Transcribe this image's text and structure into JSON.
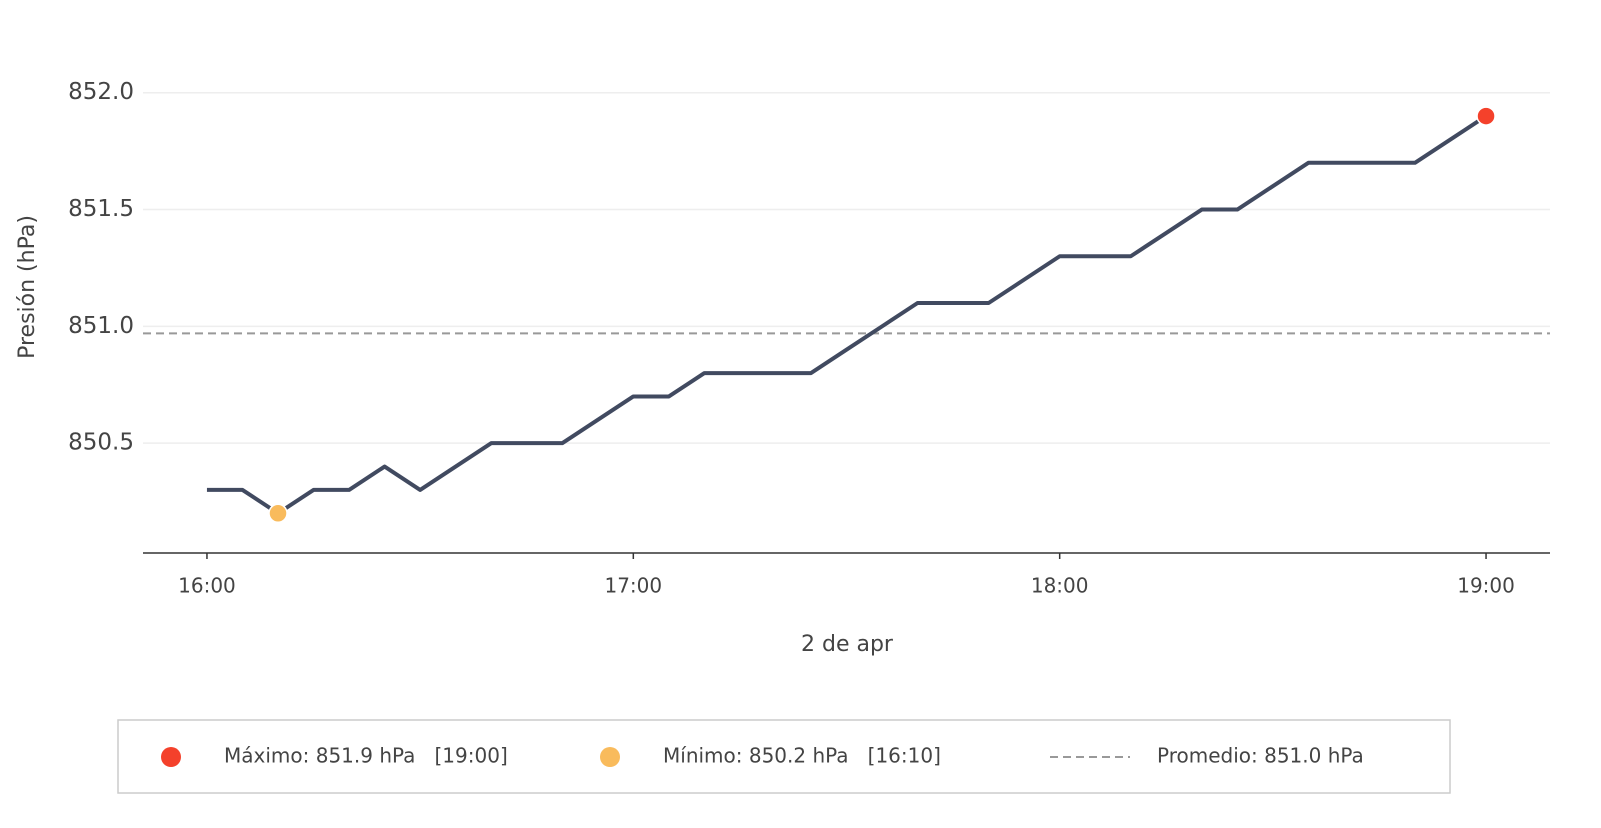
{
  "chart_data": {
    "type": "line",
    "y_label": "Presión (hPa)",
    "x_label": "2 de apr",
    "x": [
      "16:00",
      "16:05",
      "16:10",
      "16:15",
      "16:20",
      "16:25",
      "16:30",
      "16:35",
      "16:40",
      "16:45",
      "16:50",
      "16:55",
      "17:00",
      "17:05",
      "17:10",
      "17:15",
      "17:20",
      "17:25",
      "17:30",
      "17:35",
      "17:40",
      "17:45",
      "17:50",
      "17:55",
      "18:00",
      "18:05",
      "18:10",
      "18:15",
      "18:20",
      "18:25",
      "18:30",
      "18:35",
      "18:40",
      "18:45",
      "18:50",
      "18:55",
      "19:00"
    ],
    "values": [
      850.3,
      850.3,
      850.2,
      850.3,
      850.3,
      850.4,
      850.3,
      850.4,
      850.5,
      850.5,
      850.5,
      850.6,
      850.7,
      850.7,
      850.8,
      850.8,
      850.8,
      850.8,
      850.9,
      851.0,
      851.1,
      851.1,
      851.1,
      851.2,
      851.3,
      851.3,
      851.3,
      851.4,
      851.5,
      851.5,
      851.6,
      851.7,
      851.7,
      851.7,
      851.7,
      851.8,
      851.9
    ],
    "color": "#414a60",
    "xlim": [
      "15:51",
      "19:09"
    ],
    "xticks": [
      "16:00",
      "17:00",
      "18:00",
      "19:00"
    ],
    "ylim": [
      850.03,
      852.14
    ],
    "yticks": [
      {
        "value": 850.5,
        "label": "850.5"
      },
      {
        "value": 851,
        "label": "851.0"
      },
      {
        "value": 851.5,
        "label": "851.5"
      },
      {
        "value": 852,
        "label": "852.0"
      }
    ],
    "grid": true,
    "markers": [
      {
        "label": "Máximo: 851.9 hPa   [19:00]",
        "x": "19:00",
        "value": 851.9,
        "color": "#f4412b"
      },
      {
        "label": "Mínimo: 850.2 hPa   [16:10]",
        "x": "16:10",
        "value": 850.2,
        "color": "#f9bb5c"
      }
    ],
    "mean": {
      "label": "Promedio: 851.0 hPa",
      "value": 850.97,
      "color": "#999999"
    }
  }
}
